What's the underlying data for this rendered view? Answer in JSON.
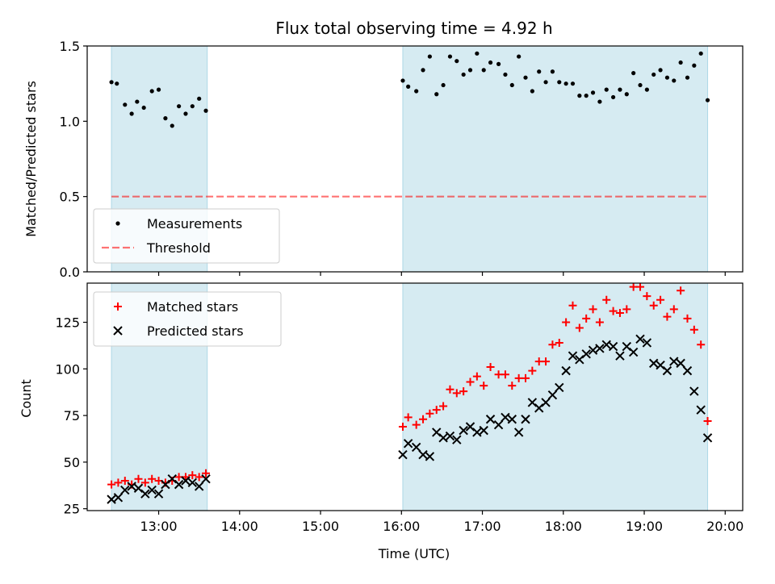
{
  "title": "Flux total observing time = 4.92 h",
  "xlabel": "Time (UTC)",
  "colors": {
    "shade": "#add8e6",
    "measurement": "#000000",
    "threshold": "#ff0000",
    "matched": "#ff0000",
    "predicted": "#000000"
  },
  "chart_data": [
    {
      "type": "scatter",
      "ylabel": "Matched/Predicted stars",
      "xlim": [
        "12:07",
        "20:13"
      ],
      "ylim": [
        0,
        1.5
      ],
      "yticks": [
        0.0,
        0.5,
        1.0,
        1.5
      ],
      "ytick_labels": [
        "0.0",
        "0.5",
        "1.0",
        "1.5"
      ],
      "xticks": [
        "13:00",
        "14:00",
        "15:00",
        "16:00",
        "17:00",
        "18:00",
        "19:00",
        "20:00"
      ],
      "shaded_intervals": [
        [
          "12:25",
          "13:36"
        ],
        [
          "16:01",
          "19:47"
        ]
      ],
      "legend": {
        "position": "lower left",
        "entries": [
          "Measurements",
          "Threshold"
        ]
      },
      "series": [
        {
          "name": "Measurements",
          "marker": "dot",
          "points": [
            [
              "12:25",
              1.26
            ],
            [
              "12:29",
              1.25
            ],
            [
              "12:35",
              1.11
            ],
            [
              "12:40",
              1.05
            ],
            [
              "12:44",
              1.13
            ],
            [
              "12:49",
              1.09
            ],
            [
              "12:55",
              1.2
            ],
            [
              "13:00",
              1.21
            ],
            [
              "13:05",
              1.02
            ],
            [
              "13:10",
              0.97
            ],
            [
              "13:15",
              1.1
            ],
            [
              "13:20",
              1.05
            ],
            [
              "13:25",
              1.1
            ],
            [
              "13:30",
              1.15
            ],
            [
              "13:35",
              1.07
            ],
            [
              "16:01",
              1.27
            ],
            [
              "16:05",
              1.23
            ],
            [
              "16:11",
              1.2
            ],
            [
              "16:16",
              1.34
            ],
            [
              "16:21",
              1.43
            ],
            [
              "16:26",
              1.18
            ],
            [
              "16:31",
              1.24
            ],
            [
              "16:36",
              1.43
            ],
            [
              "16:41",
              1.4
            ],
            [
              "16:46",
              1.31
            ],
            [
              "16:51",
              1.34
            ],
            [
              "16:56",
              1.45
            ],
            [
              "17:01",
              1.34
            ],
            [
              "17:06",
              1.39
            ],
            [
              "17:12",
              1.38
            ],
            [
              "17:17",
              1.31
            ],
            [
              "17:22",
              1.24
            ],
            [
              "17:27",
              1.43
            ],
            [
              "17:32",
              1.29
            ],
            [
              "17:37",
              1.2
            ],
            [
              "17:42",
              1.33
            ],
            [
              "17:47",
              1.26
            ],
            [
              "17:52",
              1.33
            ],
            [
              "17:57",
              1.26
            ],
            [
              "18:02",
              1.25
            ],
            [
              "18:07",
              1.25
            ],
            [
              "18:12",
              1.17
            ],
            [
              "18:17",
              1.17
            ],
            [
              "18:22",
              1.19
            ],
            [
              "18:27",
              1.13
            ],
            [
              "18:32",
              1.21
            ],
            [
              "18:37",
              1.16
            ],
            [
              "18:42",
              1.21
            ],
            [
              "18:47",
              1.18
            ],
            [
              "18:52",
              1.32
            ],
            [
              "18:57",
              1.24
            ],
            [
              "19:02",
              1.21
            ],
            [
              "19:07",
              1.31
            ],
            [
              "19:12",
              1.34
            ],
            [
              "19:17",
              1.29
            ],
            [
              "19:22",
              1.27
            ],
            [
              "19:27",
              1.39
            ],
            [
              "19:32",
              1.29
            ],
            [
              "19:37",
              1.37
            ],
            [
              "19:42",
              1.45
            ],
            [
              "19:47",
              1.14
            ]
          ]
        },
        {
          "name": "Threshold",
          "marker": "dashed-line",
          "points": [
            [
              "12:25",
              0.5
            ],
            [
              "19:47",
              0.5
            ]
          ]
        }
      ]
    },
    {
      "type": "scatter",
      "ylabel": "Count",
      "xlim": [
        "12:07",
        "20:13"
      ],
      "ylim": [
        24,
        146
      ],
      "yticks": [
        25,
        50,
        75,
        100,
        125
      ],
      "ytick_labels": [
        "25",
        "50",
        "75",
        "100",
        "125"
      ],
      "xticks": [
        "13:00",
        "14:00",
        "15:00",
        "16:00",
        "17:00",
        "18:00",
        "19:00",
        "20:00"
      ],
      "xtick_labels": [
        "13:00",
        "14:00",
        "15:00",
        "16:00",
        "17:00",
        "18:00",
        "19:00",
        "20:00"
      ],
      "shaded_intervals": [
        [
          "12:25",
          "13:36"
        ],
        [
          "16:01",
          "19:47"
        ]
      ],
      "legend": {
        "position": "upper left",
        "entries": [
          "Matched stars",
          "Predicted stars"
        ]
      },
      "series": [
        {
          "name": "Matched stars",
          "marker": "plus",
          "points": [
            [
              "12:25",
              38
            ],
            [
              "12:30",
              39
            ],
            [
              "12:35",
              40
            ],
            [
              "12:40",
              38
            ],
            [
              "12:45",
              41
            ],
            [
              "12:50",
              39
            ],
            [
              "12:55",
              41
            ],
            [
              "13:00",
              40
            ],
            [
              "13:05",
              39
            ],
            [
              "13:10",
              40
            ],
            [
              "13:15",
              42
            ],
            [
              "13:20",
              42
            ],
            [
              "13:25",
              43
            ],
            [
              "13:30",
              42
            ],
            [
              "13:35",
              44
            ],
            [
              "16:01",
              69
            ],
            [
              "16:05",
              74
            ],
            [
              "16:11",
              70
            ],
            [
              "16:16",
              73
            ],
            [
              "16:21",
              76
            ],
            [
              "16:26",
              78
            ],
            [
              "16:31",
              80
            ],
            [
              "16:36",
              89
            ],
            [
              "16:41",
              87
            ],
            [
              "16:46",
              88
            ],
            [
              "16:51",
              93
            ],
            [
              "16:56",
              96
            ],
            [
              "17:01",
              91
            ],
            [
              "17:06",
              101
            ],
            [
              "17:12",
              97
            ],
            [
              "17:17",
              97
            ],
            [
              "17:22",
              91
            ],
            [
              "17:27",
              95
            ],
            [
              "17:32",
              95
            ],
            [
              "17:37",
              99
            ],
            [
              "17:42",
              104
            ],
            [
              "17:47",
              104
            ],
            [
              "17:52",
              113
            ],
            [
              "17:57",
              114
            ],
            [
              "18:02",
              125
            ],
            [
              "18:07",
              134
            ],
            [
              "18:12",
              122
            ],
            [
              "18:17",
              127
            ],
            [
              "18:22",
              132
            ],
            [
              "18:27",
              125
            ],
            [
              "18:32",
              137
            ],
            [
              "18:37",
              131
            ],
            [
              "18:42",
              130
            ],
            [
              "18:47",
              132
            ],
            [
              "18:52",
              144
            ],
            [
              "18:57",
              144
            ],
            [
              "19:02",
              139
            ],
            [
              "19:07",
              134
            ],
            [
              "19:12",
              137
            ],
            [
              "19:17",
              128
            ],
            [
              "19:22",
              132
            ],
            [
              "19:27",
              142
            ],
            [
              "19:32",
              127
            ],
            [
              "19:37",
              121
            ],
            [
              "19:42",
              113
            ],
            [
              "19:47",
              72
            ]
          ]
        },
        {
          "name": "Predicted stars",
          "marker": "x",
          "points": [
            [
              "12:25",
              30
            ],
            [
              "12:30",
              31
            ],
            [
              "12:35",
              35
            ],
            [
              "12:40",
              37
            ],
            [
              "12:45",
              36
            ],
            [
              "12:50",
              33
            ],
            [
              "12:55",
              35
            ],
            [
              "13:00",
              33
            ],
            [
              "13:05",
              38
            ],
            [
              "13:10",
              41
            ],
            [
              "13:15",
              38
            ],
            [
              "13:20",
              40
            ],
            [
              "13:25",
              39
            ],
            [
              "13:30",
              37
            ],
            [
              "13:35",
              41
            ],
            [
              "16:01",
              54
            ],
            [
              "16:05",
              60
            ],
            [
              "16:11",
              58
            ],
            [
              "16:16",
              54
            ],
            [
              "16:21",
              53
            ],
            [
              "16:26",
              66
            ],
            [
              "16:31",
              63
            ],
            [
              "16:36",
              64
            ],
            [
              "16:41",
              62
            ],
            [
              "16:46",
              67
            ],
            [
              "16:51",
              69
            ],
            [
              "16:56",
              66
            ],
            [
              "17:01",
              67
            ],
            [
              "17:06",
              73
            ],
            [
              "17:12",
              70
            ],
            [
              "17:17",
              74
            ],
            [
              "17:22",
              73
            ],
            [
              "17:27",
              66
            ],
            [
              "17:32",
              73
            ],
            [
              "17:37",
              82
            ],
            [
              "17:42",
              79
            ],
            [
              "17:47",
              82
            ],
            [
              "17:52",
              86
            ],
            [
              "17:57",
              90
            ],
            [
              "18:02",
              99
            ],
            [
              "18:07",
              107
            ],
            [
              "18:12",
              105
            ],
            [
              "18:17",
              108
            ],
            [
              "18:22",
              110
            ],
            [
              "18:27",
              111
            ],
            [
              "18:32",
              113
            ],
            [
              "18:37",
              112
            ],
            [
              "18:42",
              107
            ],
            [
              "18:47",
              112
            ],
            [
              "18:52",
              109
            ],
            [
              "18:57",
              116
            ],
            [
              "19:02",
              114
            ],
            [
              "19:07",
              103
            ],
            [
              "19:12",
              102
            ],
            [
              "19:17",
              99
            ],
            [
              "19:22",
              104
            ],
            [
              "19:27",
              103
            ],
            [
              "19:32",
              99
            ],
            [
              "19:37",
              88
            ],
            [
              "19:42",
              78
            ],
            [
              "19:47",
              63
            ]
          ]
        }
      ]
    }
  ]
}
